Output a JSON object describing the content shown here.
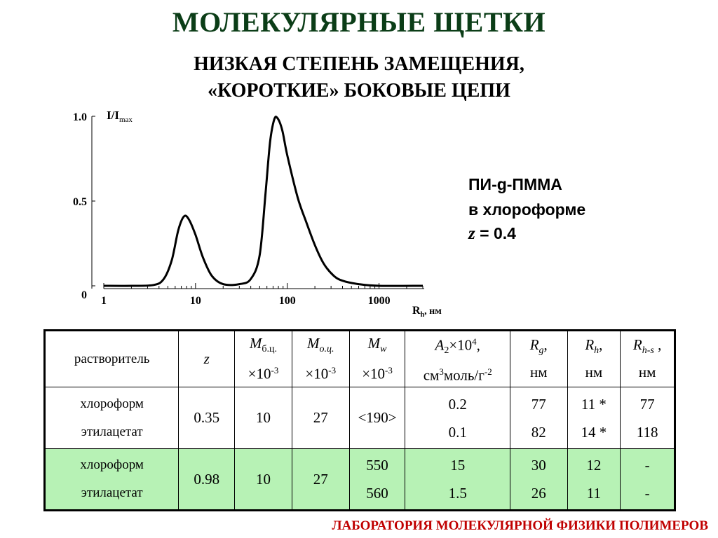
{
  "title": "МОЛЕКУЛЯРНЫЕ ЩЕТКИ",
  "subtitle_line1": "НИЗКАЯ СТЕПЕНЬ ЗАМЕЩЕНИЯ,",
  "subtitle_line2": "«КОРОТКИЕ» БОКОВЫЕ ЦЕПИ",
  "chart_data": {
    "type": "line",
    "xscale": "log",
    "xlim": [
      1,
      3000
    ],
    "ylim": [
      0,
      1.0
    ],
    "xticks": [
      "1",
      "10",
      "100",
      "1000"
    ],
    "yticks": [
      "0",
      "0.5",
      "1.0"
    ],
    "ylabel": "I/I",
    "ylabel_sub": "max",
    "xlabel": "R",
    "xlabel_sub": "h",
    "xlabel_unit": ", нм",
    "grid": false,
    "series": [
      {
        "points": [
          [
            1.0,
            0.0
          ],
          [
            2.0,
            0.0
          ],
          [
            3.5,
            0.005
          ],
          [
            4.5,
            0.04
          ],
          [
            5.5,
            0.15
          ],
          [
            6.5,
            0.33
          ],
          [
            7.5,
            0.41
          ],
          [
            8.5,
            0.39
          ],
          [
            10,
            0.3
          ],
          [
            12,
            0.17
          ],
          [
            15,
            0.06
          ],
          [
            20,
            0.01
          ],
          [
            30,
            0.01
          ],
          [
            40,
            0.04
          ],
          [
            50,
            0.18
          ],
          [
            58,
            0.55
          ],
          [
            65,
            0.85
          ],
          [
            72,
            0.98
          ],
          [
            78,
            0.99
          ],
          [
            88,
            0.92
          ],
          [
            100,
            0.77
          ],
          [
            130,
            0.52
          ],
          [
            160,
            0.38
          ],
          [
            200,
            0.24
          ],
          [
            250,
            0.13
          ],
          [
            320,
            0.06
          ],
          [
            400,
            0.03
          ],
          [
            600,
            0.01
          ],
          [
            1000,
            0.0
          ],
          [
            3000,
            0.0
          ]
        ]
      }
    ]
  },
  "legend_text": {
    "line1": "ПИ-g-ПММА",
    "line2": "в хлороформе",
    "z_var": "z",
    "z_value": " = 0.4"
  },
  "table": {
    "headers": {
      "solvent": "растворитель",
      "z": "z",
      "mbc_M": "M",
      "mbc_sub": "б.ц.",
      "moc_M": "M",
      "moc_sub": "о.ц.",
      "mw_M": "M",
      "mw_sub": "w",
      "scale_mult": "×10",
      "scale_exp": "-3",
      "a2_A": "A",
      "a2_sub": "2",
      "a2_mult": "×10",
      "a2_exp": "4",
      "a2_comma": ",",
      "a2_unit_cm": "см",
      "a2_unit_cm_exp": "3",
      "a2_unit_mid": "моль/г",
      "a2_unit_g_exp": "-2",
      "rg_R": "R",
      "rg_sub": "g",
      "rh_R": "R",
      "rh_sub": "h",
      "rhs_R": "R",
      "rhs_sub": "h-s",
      "comma": ",",
      "comma_spaced": " ,",
      "unit_nm": "нм"
    },
    "rows": [
      {
        "solvent_1": "хлороформ",
        "solvent_2": "этилацетат",
        "z": "0.35",
        "mbc": "10",
        "moc": "27",
        "mw": "<190>",
        "a2_1": "0.2",
        "a2_2": "0.1",
        "rg_1": "77",
        "rg_2": "82",
        "rh_1": "11 *",
        "rh_2": "14 *",
        "rhs_1": "77",
        "rhs_2": "118"
      },
      {
        "solvent_1": "хлороформ",
        "solvent_2": "этилацетат",
        "z": "0.98",
        "mbc": "10",
        "moc": "27",
        "mw_1": "550",
        "mw_2": "560",
        "a2_1": "15",
        "a2_2": "1.5",
        "rg_1": "30",
        "rg_2": "26",
        "rh_1": "12",
        "rh_2": "11",
        "rhs_1": "-",
        "rhs_2": "-"
      }
    ]
  },
  "footer": "ЛАБОРАТОРИЯ МОЛЕКУЛЯРНОЙ ФИЗИКИ ПОЛИМЕРОВ",
  "colors": {
    "title": "#0b3d17",
    "highlight_row": "#b7f2b5",
    "footer": "#c00000"
  }
}
